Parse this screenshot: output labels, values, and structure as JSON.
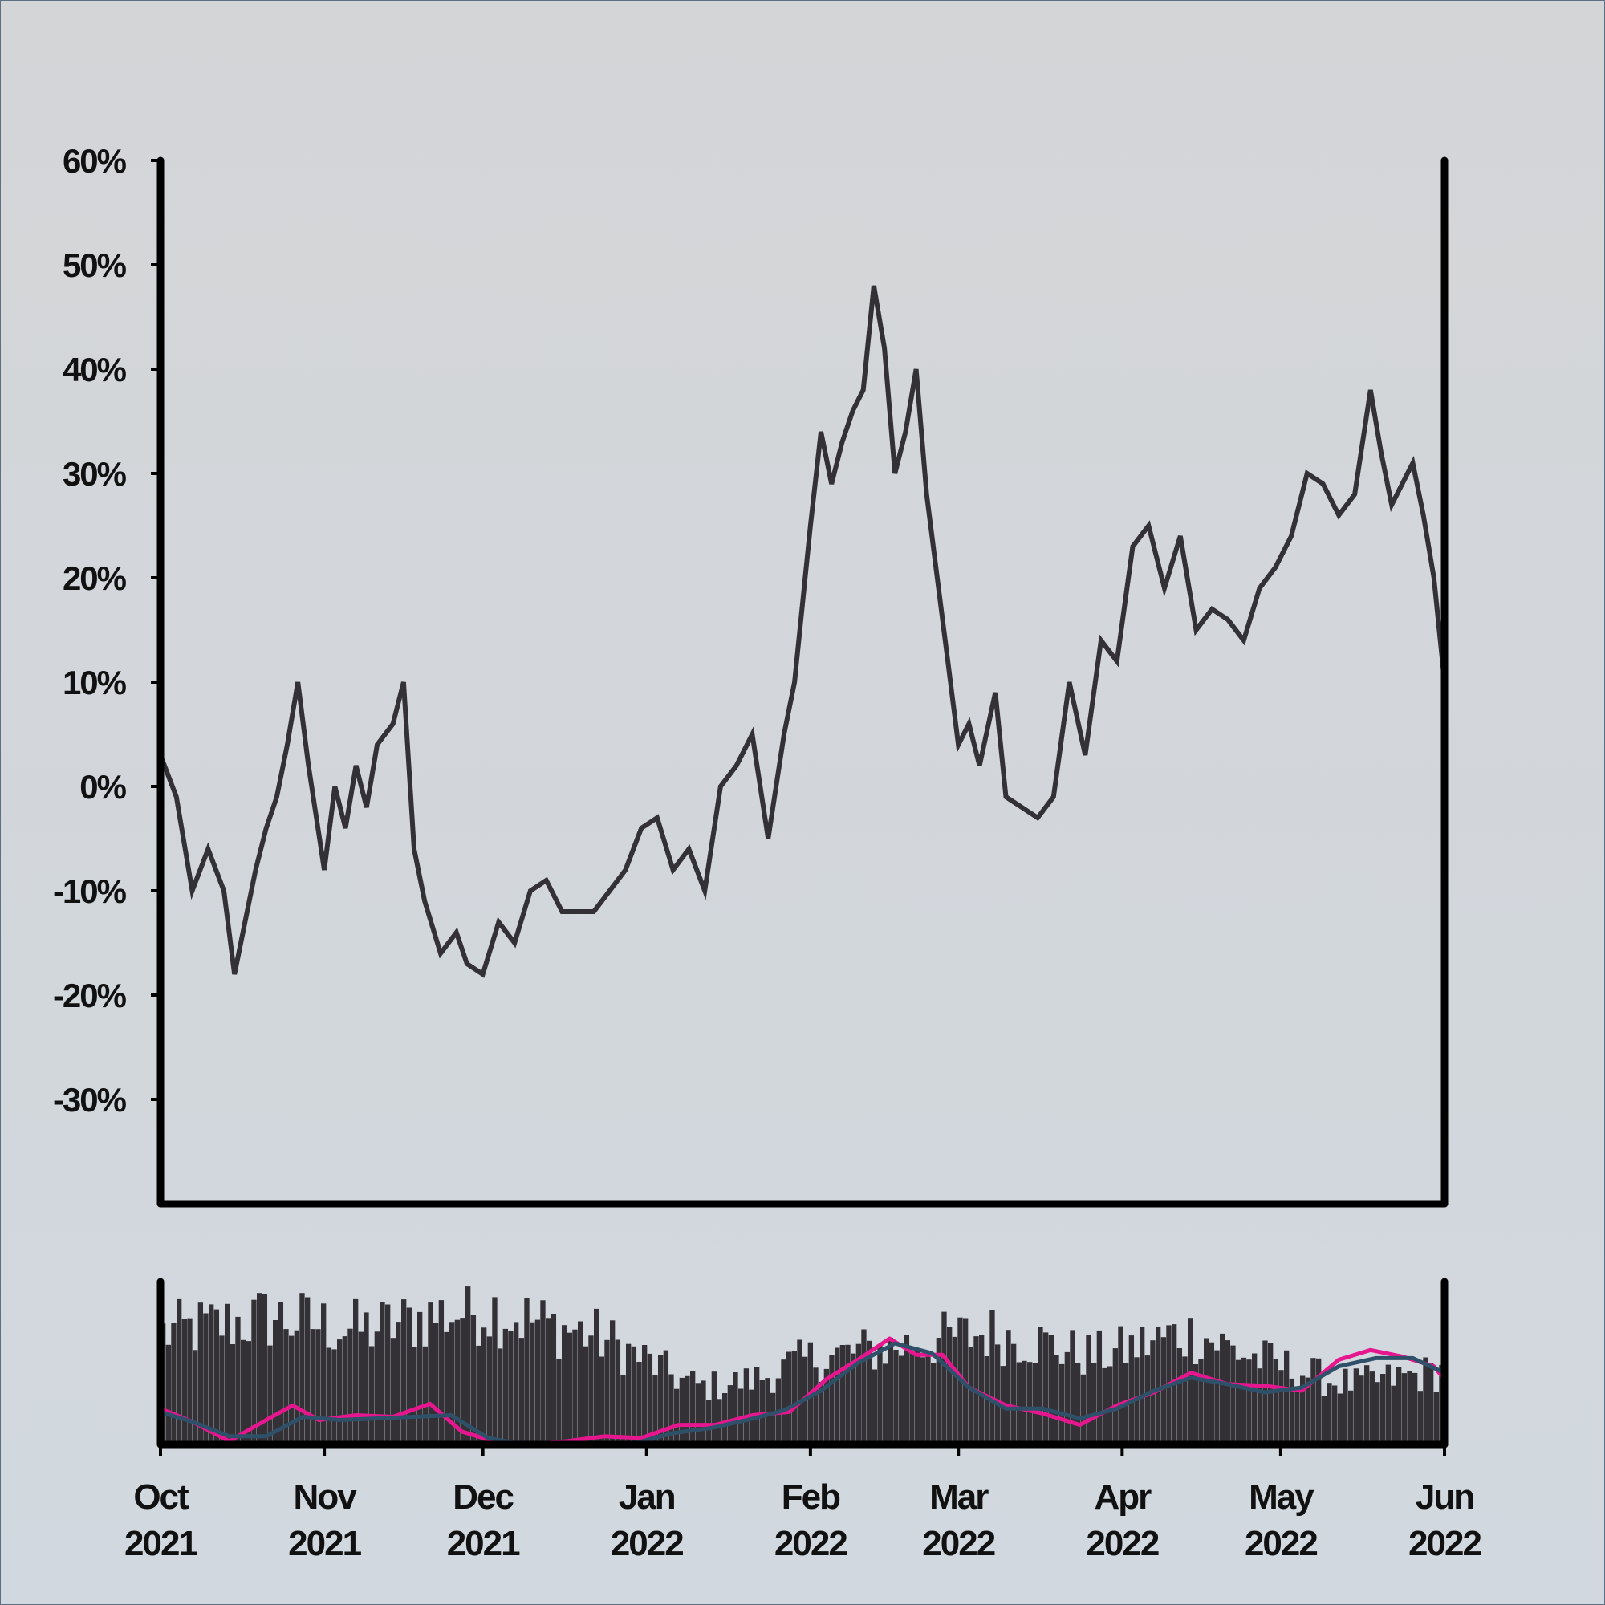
{
  "chart_data": [
    {
      "type": "line",
      "panel": "price",
      "ylim": [
        -40,
        60
      ],
      "yticks": [
        60,
        50,
        40,
        30,
        20,
        10,
        0,
        -10,
        -20,
        -30
      ],
      "ytick_labels": [
        "60%",
        "50%",
        "40%",
        "30%",
        "20%",
        "10%",
        "0%",
        "-10%",
        "-20%",
        "-30%"
      ],
      "xlim": [
        "2021-10-01",
        "2022-06-01"
      ],
      "series": [
        {
          "color": "#333135",
          "x": [
            "2021-10-01",
            "2021-10-04",
            "2021-10-07",
            "2021-10-10",
            "2021-10-13",
            "2021-10-15",
            "2021-10-17",
            "2021-10-19",
            "2021-10-21",
            "2021-10-23",
            "2021-10-25",
            "2021-10-27",
            "2021-10-29",
            "2021-11-01",
            "2021-11-03",
            "2021-11-05",
            "2021-11-07",
            "2021-11-09",
            "2021-11-11",
            "2021-11-14",
            "2021-11-16",
            "2021-11-18",
            "2021-11-20",
            "2021-11-23",
            "2021-11-26",
            "2021-11-28",
            "2021-12-01",
            "2021-12-04",
            "2021-12-07",
            "2021-12-10",
            "2021-12-13",
            "2021-12-16",
            "2021-12-19",
            "2021-12-22",
            "2021-12-25",
            "2021-12-28",
            "2021-12-31",
            "2022-01-03",
            "2022-01-06",
            "2022-01-09",
            "2022-01-12",
            "2022-01-15",
            "2022-01-18",
            "2022-01-21",
            "2022-01-24",
            "2022-01-27",
            "2022-01-29",
            "2022-02-01",
            "2022-02-03",
            "2022-02-05",
            "2022-02-07",
            "2022-02-09",
            "2022-02-11",
            "2022-02-13",
            "2022-02-15",
            "2022-02-17",
            "2022-02-19",
            "2022-02-21",
            "2022-02-23",
            "2022-02-25",
            "2022-02-27",
            "2022-03-01",
            "2022-03-03",
            "2022-03-05",
            "2022-03-08",
            "2022-03-10",
            "2022-03-13",
            "2022-03-16",
            "2022-03-19",
            "2022-03-22",
            "2022-03-25",
            "2022-03-28",
            "2022-03-31",
            "2022-04-03",
            "2022-04-06",
            "2022-04-09",
            "2022-04-12",
            "2022-04-15",
            "2022-04-18",
            "2022-04-21",
            "2022-04-24",
            "2022-04-27",
            "2022-04-30",
            "2022-05-03",
            "2022-05-06",
            "2022-05-09",
            "2022-05-12",
            "2022-05-15",
            "2022-05-18",
            "2022-05-20",
            "2022-05-22",
            "2022-05-24",
            "2022-05-26",
            "2022-05-28",
            "2022-05-30",
            "2022-06-01"
          ],
          "values": [
            3,
            -1,
            -10,
            -6,
            -10,
            -18,
            -13,
            -8,
            -4,
            -1,
            4,
            10,
            2,
            -8,
            0,
            -4,
            2,
            -2,
            4,
            6,
            10,
            -6,
            -11,
            -16,
            -14,
            -17,
            -18,
            -13,
            -15,
            -10,
            -9,
            -12,
            -12,
            -12,
            -10,
            -8,
            -4,
            -3,
            -8,
            -6,
            -10,
            0,
            2,
            5,
            -5,
            5,
            10,
            25,
            34,
            29,
            33,
            36,
            38,
            48,
            42,
            30,
            34,
            40,
            28,
            20,
            12,
            4,
            6,
            2,
            9,
            -1,
            -2,
            -3,
            -1,
            10,
            3,
            14,
            12,
            23,
            25,
            19,
            24,
            15,
            17,
            16,
            14,
            19,
            21,
            24,
            30,
            29,
            26,
            28,
            38,
            32,
            27,
            29,
            31,
            26,
            20,
            10
          ]
        }
      ]
    },
    {
      "type": "bar",
      "panel": "volume",
      "xlim": [
        "2021-10-01",
        "2022-06-01"
      ],
      "xtick_labels": [
        {
          "month": "Oct",
          "year": "2021"
        },
        {
          "month": "Nov",
          "year": "2021"
        },
        {
          "month": "Dec",
          "year": "2021"
        },
        {
          "month": "Jan",
          "year": "2022"
        },
        {
          "month": "Feb",
          "year": "2022"
        },
        {
          "month": "Mar",
          "year": "2022"
        },
        {
          "month": "Apr",
          "year": "2022"
        },
        {
          "month": "May",
          "year": "2022"
        },
        {
          "month": "Jun",
          "year": "2022"
        }
      ],
      "bar_color": "#333135",
      "bars_level": [
        0.7,
        0.72,
        0.74,
        0.76,
        0.78,
        0.8,
        0.78,
        0.76,
        0.74,
        0.72,
        0.74,
        0.76,
        0.8,
        0.82,
        0.84,
        0.86,
        0.82,
        0.78,
        0.74,
        0.72,
        0.68,
        0.62,
        0.55,
        0.48,
        0.4,
        0.36,
        0.38,
        0.4,
        0.44,
        0.5,
        0.54,
        0.56,
        0.58,
        0.6,
        0.62,
        0.64,
        0.66,
        0.68,
        0.7,
        0.68,
        0.66,
        0.62,
        0.58,
        0.56,
        0.58,
        0.62,
        0.66,
        0.7,
        0.68,
        0.62,
        0.56,
        0.52,
        0.48,
        0.44,
        0.4,
        0.38,
        0.4,
        0.42,
        0.44,
        0.46
      ],
      "lines": [
        {
          "color": "#e6168f",
          "x": [
            "2021-10-01",
            "2021-10-07",
            "2021-10-14",
            "2021-10-21",
            "2021-10-26",
            "2021-10-31",
            "2021-11-07",
            "2021-11-14",
            "2021-11-21",
            "2021-11-27",
            "2021-12-03",
            "2021-12-10",
            "2021-12-17",
            "2021-12-24",
            "2021-12-31",
            "2022-01-07",
            "2022-01-14",
            "2022-01-21",
            "2022-01-28",
            "2022-02-04",
            "2022-02-10",
            "2022-02-16",
            "2022-02-21",
            "2022-02-26",
            "2022-03-03",
            "2022-03-10",
            "2022-03-17",
            "2022-03-24",
            "2022-03-31",
            "2022-04-07",
            "2022-04-14",
            "2022-04-21",
            "2022-04-28",
            "2022-05-05",
            "2022-05-12",
            "2022-05-18",
            "2022-05-24",
            "2022-05-30",
            "2022-06-01"
          ],
          "values": [
            0.22,
            0.14,
            0.02,
            0.15,
            0.24,
            0.15,
            0.18,
            0.17,
            0.25,
            0.08,
            0.02,
            0.0,
            0.02,
            0.05,
            0.04,
            0.12,
            0.12,
            0.18,
            0.2,
            0.4,
            0.52,
            0.65,
            0.55,
            0.55,
            0.35,
            0.24,
            0.19,
            0.12,
            0.24,
            0.32,
            0.44,
            0.37,
            0.36,
            0.33,
            0.52,
            0.58,
            0.54,
            0.48,
            0.4
          ]
        },
        {
          "color": "#2e5169",
          "x": [
            "2021-10-01",
            "2021-10-07",
            "2021-10-14",
            "2021-10-21",
            "2021-10-28",
            "2021-11-04",
            "2021-11-11",
            "2021-11-18",
            "2021-11-25",
            "2021-12-02",
            "2021-12-09",
            "2021-12-16",
            "2021-12-23",
            "2021-12-30",
            "2022-01-06",
            "2022-01-13",
            "2022-01-20",
            "2022-01-27",
            "2022-02-03",
            "2022-02-10",
            "2022-02-17",
            "2022-02-24",
            "2022-03-03",
            "2022-03-10",
            "2022-03-17",
            "2022-03-24",
            "2022-03-31",
            "2022-04-07",
            "2022-04-14",
            "2022-04-21",
            "2022-04-28",
            "2022-05-05",
            "2022-05-12",
            "2022-05-19",
            "2022-05-26",
            "2022-06-01"
          ],
          "values": [
            0.2,
            0.14,
            0.05,
            0.05,
            0.17,
            0.15,
            0.16,
            0.17,
            0.18,
            0.04,
            0.0,
            0.0,
            0.0,
            0.01,
            0.07,
            0.1,
            0.15,
            0.21,
            0.33,
            0.5,
            0.62,
            0.56,
            0.35,
            0.22,
            0.22,
            0.16,
            0.22,
            0.33,
            0.41,
            0.37,
            0.32,
            0.35,
            0.48,
            0.53,
            0.53,
            0.44
          ]
        }
      ]
    }
  ]
}
